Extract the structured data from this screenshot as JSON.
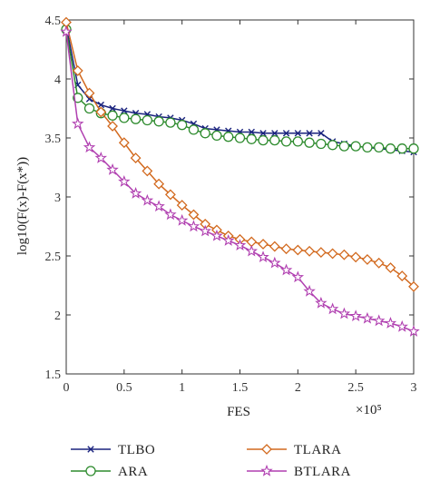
{
  "chart_data": {
    "type": "line",
    "title": "",
    "xlabel": "FES",
    "ylabel": "log10(F(x)-F(x*))",
    "x_scale_label": "×10⁵",
    "xlim": [
      0,
      3
    ],
    "ylim": [
      1.5,
      4.5
    ],
    "xticks": [
      0,
      0.5,
      1,
      1.5,
      2,
      2.5,
      3
    ],
    "yticks": [
      1.5,
      2,
      2.5,
      3,
      3.5,
      4,
      4.5
    ],
    "xtick_labels": [
      "0",
      "0.5",
      "1",
      "1.5",
      "2",
      "2.5",
      "3"
    ],
    "ytick_labels": [
      "1.5",
      "2",
      "2.5",
      "3",
      "3.5",
      "4",
      "4.5"
    ],
    "grid": false,
    "legend_position": "bottom",
    "series": [
      {
        "name": "TLBO",
        "color": "#1a237e",
        "marker": "x",
        "x": [
          0,
          0.1,
          0.2,
          0.3,
          0.4,
          0.5,
          0.6,
          0.7,
          0.8,
          0.9,
          1.0,
          1.1,
          1.2,
          1.3,
          1.4,
          1.5,
          1.6,
          1.7,
          1.8,
          1.9,
          2.0,
          2.1,
          2.2,
          2.3,
          2.4,
          2.5,
          2.6,
          2.7,
          2.8,
          2.9,
          3.0
        ],
        "y": [
          4.45,
          3.95,
          3.83,
          3.78,
          3.75,
          3.73,
          3.71,
          3.7,
          3.68,
          3.67,
          3.65,
          3.62,
          3.58,
          3.57,
          3.56,
          3.55,
          3.55,
          3.54,
          3.54,
          3.54,
          3.54,
          3.54,
          3.54,
          3.47,
          3.45,
          3.43,
          3.42,
          3.41,
          3.4,
          3.39,
          3.38
        ]
      },
      {
        "name": "ARA",
        "color": "#2e8b2e",
        "marker": "circle",
        "x": [
          0,
          0.1,
          0.2,
          0.3,
          0.4,
          0.5,
          0.6,
          0.7,
          0.8,
          0.9,
          1.0,
          1.1,
          1.2,
          1.3,
          1.4,
          1.5,
          1.6,
          1.7,
          1.8,
          1.9,
          2.0,
          2.1,
          2.2,
          2.3,
          2.4,
          2.5,
          2.6,
          2.7,
          2.8,
          2.9,
          3.0
        ],
        "y": [
          4.42,
          3.84,
          3.75,
          3.71,
          3.69,
          3.67,
          3.66,
          3.65,
          3.64,
          3.63,
          3.61,
          3.57,
          3.54,
          3.52,
          3.51,
          3.5,
          3.49,
          3.48,
          3.48,
          3.47,
          3.47,
          3.46,
          3.45,
          3.44,
          3.43,
          3.43,
          3.42,
          3.42,
          3.41,
          3.41,
          3.41
        ]
      },
      {
        "name": "TLARA",
        "color": "#d2691e",
        "marker": "diamond",
        "x": [
          0,
          0.1,
          0.2,
          0.3,
          0.4,
          0.5,
          0.6,
          0.7,
          0.8,
          0.9,
          1.0,
          1.1,
          1.2,
          1.3,
          1.4,
          1.5,
          1.6,
          1.7,
          1.8,
          1.9,
          2.0,
          2.1,
          2.2,
          2.3,
          2.4,
          2.5,
          2.6,
          2.7,
          2.8,
          2.9,
          3.0
        ],
        "y": [
          4.48,
          4.07,
          3.88,
          3.72,
          3.6,
          3.46,
          3.33,
          3.22,
          3.11,
          3.02,
          2.93,
          2.85,
          2.77,
          2.72,
          2.67,
          2.64,
          2.62,
          2.6,
          2.58,
          2.56,
          2.55,
          2.54,
          2.53,
          2.52,
          2.51,
          2.49,
          2.47,
          2.44,
          2.4,
          2.33,
          2.24
        ]
      },
      {
        "name": "BTLARA",
        "color": "#b03fb0",
        "marker": "star",
        "x": [
          0,
          0.1,
          0.2,
          0.3,
          0.4,
          0.5,
          0.6,
          0.7,
          0.8,
          0.9,
          1.0,
          1.1,
          1.2,
          1.3,
          1.4,
          1.5,
          1.6,
          1.7,
          1.8,
          1.9,
          2.0,
          2.1,
          2.2,
          2.3,
          2.4,
          2.5,
          2.6,
          2.7,
          2.8,
          2.9,
          3.0
        ],
        "y": [
          4.4,
          3.62,
          3.42,
          3.33,
          3.23,
          3.13,
          3.03,
          2.97,
          2.92,
          2.85,
          2.8,
          2.75,
          2.71,
          2.67,
          2.63,
          2.59,
          2.54,
          2.49,
          2.44,
          2.38,
          2.32,
          2.2,
          2.1,
          2.05,
          2.01,
          1.99,
          1.97,
          1.95,
          1.93,
          1.9,
          1.86
        ]
      }
    ]
  }
}
